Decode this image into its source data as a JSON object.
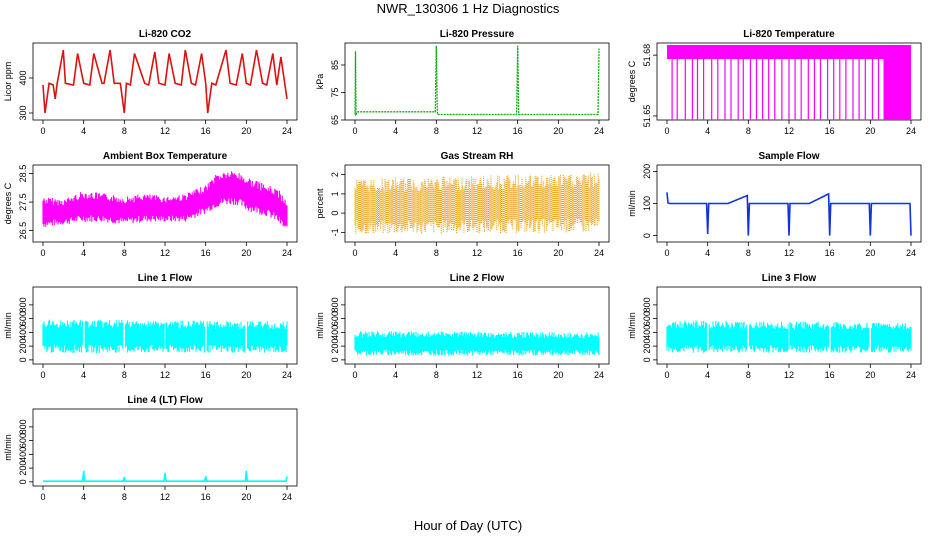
{
  "title": "NWR_130306  1 Hz Diagnostics",
  "xlabel": "Hour of Day (UTC)",
  "chart_data": [
    {
      "type": "line",
      "title": "Li-820 CO2",
      "ylabel": "Licor ppm",
      "color": "#dd1111",
      "xlim": [
        0,
        24
      ],
      "ylim": [
        280,
        500
      ],
      "x_ticks": [
        "0",
        "4",
        "8",
        "12",
        "16",
        "20",
        "24"
      ],
      "y_ticks": [
        300,
        400
      ],
      "y_tick_labels": [
        "300",
        "400"
      ],
      "series": [
        {
          "x": [
            0,
            0.2,
            0.6,
            1,
            1.2,
            1.4,
            2,
            2.2,
            3,
            3.4,
            4,
            4.6,
            5,
            5.8,
            6,
            6.6,
            7,
            7.6,
            8,
            8.2,
            8.6,
            9,
            10,
            10.4,
            11,
            11.4,
            12,
            12.4,
            13,
            13.6,
            14,
            14.6,
            15,
            15.6,
            16,
            16.2,
            16.6,
            17,
            18,
            18.4,
            19,
            19.6,
            20,
            20.4,
            21,
            21.6,
            22,
            22.6,
            23,
            23.4,
            24
          ],
          "y": [
            380,
            300,
            385,
            380,
            340,
            385,
            480,
            385,
            380,
            470,
            385,
            380,
            470,
            385,
            385,
            480,
            385,
            385,
            300,
            385,
            380,
            470,
            385,
            380,
            475,
            385,
            380,
            470,
            385,
            380,
            480,
            385,
            380,
            470,
            385,
            300,
            385,
            380,
            480,
            385,
            380,
            470,
            385,
            380,
            480,
            385,
            380,
            470,
            380,
            460,
            340
          ]
        }
      ]
    },
    {
      "type": "line",
      "title": "Li-820 Pressure",
      "ylabel": "kPa",
      "color": "#11aa11",
      "xlim": [
        0,
        24
      ],
      "ylim": [
        65,
        93
      ],
      "x_ticks": [
        "0",
        "4",
        "8",
        "12",
        "16",
        "20",
        "24"
      ],
      "y_ticks": [
        65,
        75,
        85
      ],
      "y_tick_labels": [
        "65",
        "75",
        "85"
      ],
      "series": [
        {
          "x": [
            0,
            0.05,
            0.1,
            0.3,
            2,
            4,
            6,
            7.9,
            8,
            8.1,
            10,
            12,
            14,
            15.9,
            16,
            16.1,
            18,
            20,
            22,
            23.9,
            24
          ],
          "y": [
            67,
            90,
            67,
            68,
            68,
            68,
            68,
            68,
            92,
            67,
            67,
            67,
            67,
            67,
            92,
            67,
            67,
            67,
            67,
            67,
            91
          ]
        }
      ]
    },
    {
      "type": "line",
      "title": "Li-820 Temperature",
      "ylabel": "degrees C",
      "color": "#ff00ff",
      "xlim": [
        0,
        24
      ],
      "ylim": [
        51.648,
        51.686
      ],
      "x_ticks": [
        "0",
        "4",
        "8",
        "12",
        "16",
        "20",
        "24"
      ],
      "y_ticks": [
        51.65,
        51.68
      ],
      "y_tick_labels": [
        "51.65",
        "51.68"
      ],
      "series": [
        {
          "x": [
            0,
            24
          ],
          "y": [
            51.685,
            51.685
          ],
          "dips_to": 51.648,
          "dip_x": [
            0.5,
            1,
            1.8,
            2.5,
            3,
            3.6,
            4.4,
            5,
            5.7,
            6.3,
            7,
            7.5,
            8.2,
            8.8,
            9.4,
            10,
            10.6,
            11.3,
            12,
            12.6,
            13.2,
            13.9,
            14.5,
            15.1,
            15.8,
            16.4,
            17,
            17.6,
            18.3,
            18.9,
            19.5,
            20.2,
            20.8,
            21.4,
            22,
            22.6,
            23.2,
            23.8
          ]
        }
      ]
    },
    {
      "type": "line",
      "title": "Ambient Box Temperature",
      "ylabel": "degrees C",
      "color": "#ff00ff",
      "xlim": [
        0,
        24
      ],
      "ylim": [
        26.1,
        28.8
      ],
      "x_ticks": [
        "0",
        "4",
        "8",
        "12",
        "16",
        "20",
        "24"
      ],
      "y_ticks": [
        26.5,
        27.5,
        28.5
      ],
      "y_tick_labels": [
        "26.5",
        "27.5",
        "28.5"
      ],
      "series": [
        {
          "x": [
            0,
            2,
            4,
            6,
            8,
            10,
            12,
            14,
            16,
            17,
            18,
            19,
            20,
            22,
            23,
            24
          ],
          "upper": [
            27.7,
            27.6,
            27.9,
            27.8,
            27.7,
            27.8,
            27.7,
            27.8,
            28.1,
            28.5,
            28.6,
            28.6,
            28.4,
            28.1,
            28.0,
            27.6
          ],
          "lower": [
            26.6,
            26.7,
            26.8,
            26.8,
            26.7,
            26.8,
            26.8,
            26.8,
            27.1,
            27.3,
            27.4,
            27.4,
            27.2,
            27.0,
            26.8,
            26.4
          ]
        }
      ]
    },
    {
      "type": "scatter",
      "title": "Gas Stream RH",
      "ylabel": "percent",
      "color": "#ee9900",
      "xlim": [
        0,
        24
      ],
      "ylim": [
        -1.5,
        2.5
      ],
      "x_ticks": [
        "0",
        "4",
        "8",
        "12",
        "16",
        "20",
        "24"
      ],
      "y_ticks": [
        -1,
        0,
        1,
        2
      ],
      "y_tick_labels": [
        "-1",
        "0",
        "1",
        "2"
      ],
      "series": [
        {
          "x": [
            0,
            24
          ],
          "upper": [
            1.8,
            2.1
          ],
          "lower": [
            -1.1,
            -1.0
          ]
        }
      ]
    },
    {
      "type": "line",
      "title": "Sample Flow",
      "ylabel": "ml/min",
      "color": "#1133dd",
      "xlim": [
        0,
        24
      ],
      "ylim": [
        -20,
        220
      ],
      "x_ticks": [
        "0",
        "4",
        "8",
        "12",
        "16",
        "20",
        "24"
      ],
      "y_ticks": [
        0,
        100,
        200
      ],
      "y_tick_labels": [
        "0",
        "100",
        "200"
      ],
      "series": [
        {
          "x": [
            0,
            0.1,
            0.3,
            2,
            3.9,
            4,
            4.1,
            6,
            7.9,
            8,
            8.1,
            10,
            11.9,
            12,
            12.1,
            14,
            15.9,
            16,
            16.1,
            18,
            19.9,
            20,
            20.1,
            22,
            23.9,
            24
          ],
          "y": [
            135,
            102,
            100,
            100,
            100,
            5,
            100,
            100,
            125,
            0,
            100,
            100,
            100,
            0,
            100,
            100,
            130,
            0,
            100,
            100,
            100,
            0,
            100,
            100,
            100,
            0
          ]
        }
      ]
    },
    {
      "type": "line",
      "title": "Line 1 Flow",
      "ylabel": "ml/min",
      "color": "#00ffff",
      "xlim": [
        0,
        24
      ],
      "ylim": [
        -60,
        1060
      ],
      "x_ticks": [
        "0",
        "4",
        "8",
        "12",
        "16",
        "20",
        "24"
      ],
      "y_ticks": [
        0,
        200,
        400,
        600,
        800
      ],
      "y_tick_labels": [
        "0",
        "200",
        "400",
        "600",
        "800"
      ],
      "series": [
        {
          "x": [
            0,
            24
          ],
          "upper": [
            590,
            560
          ],
          "lower": [
            100,
            100
          ],
          "gaps": [
            4,
            8,
            12,
            16,
            20
          ]
        }
      ]
    },
    {
      "type": "line",
      "title": "Line 2 Flow",
      "ylabel": "ml/min",
      "color": "#00ffff",
      "xlim": [
        0,
        24
      ],
      "ylim": [
        -60,
        1060
      ],
      "x_ticks": [
        "0",
        "4",
        "8",
        "12",
        "16",
        "20",
        "24"
      ],
      "y_ticks": [
        0,
        200,
        400,
        600,
        800
      ],
      "y_tick_labels": [
        "0",
        "200",
        "400",
        "600",
        "800"
      ],
      "series": [
        {
          "x": [
            0,
            24
          ],
          "upper": [
            420,
            400
          ],
          "lower": [
            60,
            60
          ],
          "gaps": []
        }
      ]
    },
    {
      "type": "line",
      "title": "Line 3 Flow",
      "ylabel": "ml/min",
      "color": "#00ffff",
      "xlim": [
        0,
        24
      ],
      "ylim": [
        -60,
        1060
      ],
      "x_ticks": [
        "0",
        "4",
        "8",
        "12",
        "16",
        "20",
        "24"
      ],
      "y_ticks": [
        0,
        200,
        400,
        600,
        800
      ],
      "y_tick_labels": [
        "0",
        "200",
        "400",
        "600",
        "800"
      ],
      "series": [
        {
          "x": [
            0,
            24
          ],
          "upper": [
            580,
            540
          ],
          "lower": [
            100,
            100
          ],
          "gaps": [
            4,
            8,
            12,
            16,
            20
          ]
        }
      ]
    },
    {
      "type": "line",
      "title": "Line 4 (LT) Flow",
      "ylabel": "ml/min",
      "color": "#00ffff",
      "xlim": [
        0,
        24
      ],
      "ylim": [
        -60,
        1060
      ],
      "x_ticks": [
        "0",
        "4",
        "8",
        "12",
        "16",
        "20",
        "24"
      ],
      "y_ticks": [
        0,
        200,
        400,
        600,
        800
      ],
      "y_tick_labels": [
        "0",
        "200",
        "400",
        "600",
        "800"
      ],
      "series": [
        {
          "x": [
            0,
            3.9,
            4,
            4.1,
            7.9,
            8,
            8.1,
            11.9,
            12,
            12.1,
            15.9,
            16,
            16.1,
            19.9,
            20,
            20.1,
            23.9,
            24
          ],
          "y": [
            10,
            10,
            160,
            10,
            10,
            70,
            10,
            10,
            130,
            10,
            10,
            80,
            10,
            10,
            160,
            10,
            10,
            80
          ]
        }
      ]
    }
  ]
}
